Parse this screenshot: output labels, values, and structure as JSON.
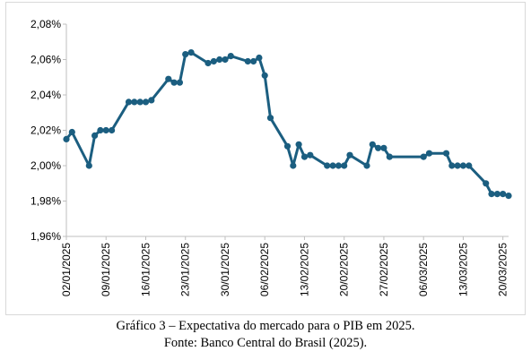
{
  "caption": {
    "line1": "Gráfico 3 – Expectativa do mercado para o PIB em 2025.",
    "line2": "Fonte: Banco Central do Brasil (2025)."
  },
  "chart_data": {
    "type": "line",
    "title": "",
    "xlabel": "",
    "ylabel": "",
    "ylim": [
      1.96,
      2.08
    ],
    "yticks": [
      "1,96%",
      "1,98%",
      "2,00%",
      "2,02%",
      "2,04%",
      "2,06%",
      "2,08%"
    ],
    "xticks": [
      "02/01/2025",
      "09/01/2025",
      "16/01/2025",
      "23/01/2025",
      "30/01/2025",
      "06/02/2025",
      "13/02/2025",
      "20/02/2025",
      "27/02/2025",
      "06/03/2025",
      "13/03/2025",
      "20/03/2025"
    ],
    "xlim": [
      "2025-01-02",
      "2025-03-21"
    ],
    "grid": false,
    "color": "#1b5e80",
    "series": [
      {
        "x": [
          "2025-01-02",
          "2025-01-03",
          "2025-01-06",
          "2025-01-07",
          "2025-01-08",
          "2025-01-09",
          "2025-01-10",
          "2025-01-13",
          "2025-01-14",
          "2025-01-15",
          "2025-01-16",
          "2025-01-17",
          "2025-01-20",
          "2025-01-21",
          "2025-01-22",
          "2025-01-23",
          "2025-01-24",
          "2025-01-27",
          "2025-01-28",
          "2025-01-29",
          "2025-01-30",
          "2025-01-31",
          "2025-02-03",
          "2025-02-04",
          "2025-02-05",
          "2025-02-06",
          "2025-02-07",
          "2025-02-10",
          "2025-02-11",
          "2025-02-12",
          "2025-02-13",
          "2025-02-14",
          "2025-02-17",
          "2025-02-18",
          "2025-02-19",
          "2025-02-20",
          "2025-02-21",
          "2025-02-24",
          "2025-02-25",
          "2025-02-26",
          "2025-02-27",
          "2025-02-28",
          "2025-03-06",
          "2025-03-07",
          "2025-03-10",
          "2025-03-11",
          "2025-03-12",
          "2025-03-13",
          "2025-03-14",
          "2025-03-17",
          "2025-03-18",
          "2025-03-19",
          "2025-03-20",
          "2025-03-21"
        ],
        "y": [
          2.015,
          2.019,
          2.0,
          2.017,
          2.02,
          2.02,
          2.02,
          2.036,
          2.036,
          2.036,
          2.036,
          2.037,
          2.049,
          2.047,
          2.047,
          2.063,
          2.064,
          2.058,
          2.059,
          2.06,
          2.06,
          2.062,
          2.059,
          2.059,
          2.061,
          2.051,
          2.027,
          2.011,
          2.0,
          2.012,
          2.005,
          2.006,
          2.0,
          2.0,
          2.0,
          2.0,
          2.006,
          2.0,
          2.012,
          2.01,
          2.01,
          2.005,
          2.005,
          2.007,
          2.007,
          2.0,
          2.0,
          2.0,
          2.0,
          1.99,
          1.984,
          1.984,
          1.984,
          1.983
        ]
      }
    ]
  }
}
